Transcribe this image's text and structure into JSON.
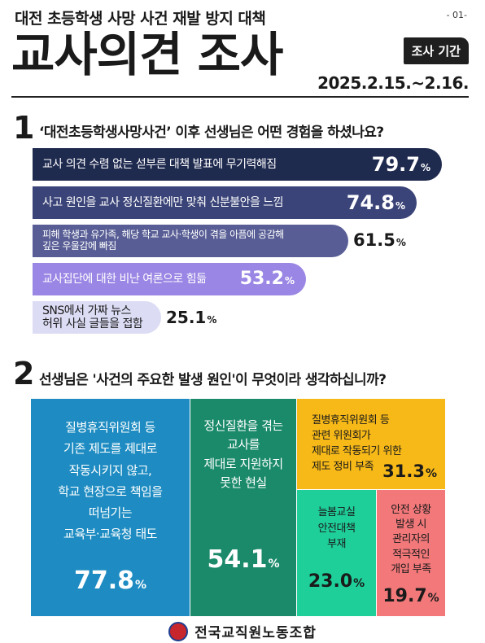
{
  "header": {
    "subtitle": "대전 초등학생 사망 사건 재발 방지 대책",
    "page_number": "- 01-",
    "title": "교사의견 조사",
    "period_label": "조사 기간",
    "period_dates": "2025.2.15.~2.16."
  },
  "q1": {
    "number": "1",
    "question": "‘대전초등학생사망사건’ 이후 선생님은 어떤 경험을 하셨나요?"
  },
  "q2": {
    "number": "2",
    "question": "선생님은 '사건의 주요한 발생 원인'이 무엇이라 생각하십니까?"
  },
  "chart_data": [
    {
      "type": "bar",
      "orientation": "horizontal",
      "categories": [
        "교사 의견 수렴 없는 섣부른 대책 발표에 무기력해짐",
        "사고 원인을 교사 정신질환에만 맞춰 신분불안을 느낌",
        "피해 학생과 유가족, 해당 학교 교사·학생이 겪을 아픔에 공감해 깊은 우울감에 빠짐",
        "교사집단에 대한 비난 여론으로 힘듦",
        "SNS에서 가짜 뉴스 허위 사실 글들을 접함"
      ],
      "labels_display": [
        "교사 의견 수렴 없는 섣부른 대책 발표에 무기력해짐",
        "사고 원인을 교사 정신질환에만 맞춰 신분불안을 느낌",
        "피해 학생과 유가족, 해당 학교 교사·학생이 겪을 아픔에 공감해\n깊은 우울감에 빠짐",
        "교사집단에 대한 비난 여론으로 힘듦",
        "SNS에서 가짜 뉴스\n허위 사실 글들을 접함"
      ],
      "values": [
        79.7,
        74.8,
        61.5,
        53.2,
        25.1
      ],
      "value_labels": [
        "79.7",
        "74.8",
        "61.5",
        "53.2",
        "25.1"
      ],
      "unit": "%",
      "colors": [
        "#1f2a4f",
        "#3b4478",
        "#585e95",
        "#9a86e4",
        "#dcdcf5"
      ],
      "text_colors": [
        "#ffffff",
        "#ffffff",
        "#ffffff",
        "#ffffff",
        "#1a1a1a"
      ]
    },
    {
      "type": "treemap",
      "categories": [
        "질병휴직위원회 등 기존 제도를 제대로 작동시키지 않고, 학교 현장으로 책임을 떠넘기는 교육부·교육청 태도",
        "정신질환을 겪는 교사를 제대로 지원하지 못한 현실",
        "질병휴직위원회 등 관련 위원회가 제대로 작동되기 위한 제도 정비 부족",
        "늘봄교실 안전대책 부재",
        "안전 상황 발생 시 관리자의 적극적인 개입 부족"
      ],
      "labels_display": [
        "질병휴직위원회 등\n기존 제도를 제대로\n작동시키지 않고,\n학교 현장으로 책임을\n떠넘기는\n교육부·교육청 태도",
        "정신질환을 겪는\n교사를\n제대로 지원하지\n못한 현실",
        "질병휴직위원회 등\n관련 위원회가\n제대로 작동되기 위한\n제도 정비 부족",
        "늘봄교실\n안전대책\n부재",
        "안전 상황\n발생 시\n관리자의\n적극적인\n개입 부족"
      ],
      "values": [
        77.8,
        54.1,
        31.3,
        23.0,
        19.7
      ],
      "value_labels": [
        "77.8",
        "54.1",
        "31.3",
        "23.0",
        "19.7"
      ],
      "unit": "%",
      "colors": [
        "#1e8cc2",
        "#1a8a6a",
        "#f7b918",
        "#1fcf9a",
        "#f2787a"
      ],
      "text_colors": [
        "#ffffff",
        "#ffffff",
        "#1a1a1a",
        "#1a1a1a",
        "#1a1a1a"
      ]
    }
  ],
  "footer": {
    "organization": "전국교직원노동조합",
    "logo_icon": "union-emblem-icon"
  }
}
